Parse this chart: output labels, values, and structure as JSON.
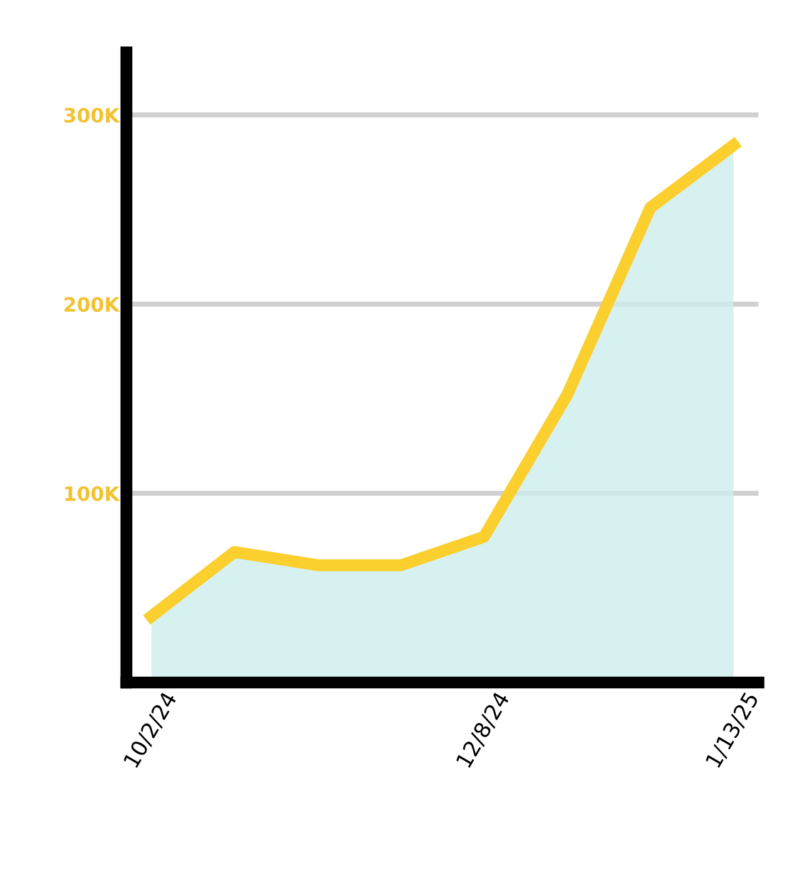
{
  "chart_data": {
    "type": "area",
    "categories": [
      "10/2/24",
      null,
      null,
      null,
      "12/8/24",
      null,
      null,
      "1/13/25"
    ],
    "series": [
      {
        "color": "#fbcf2e",
        "values": [
          35000,
          69000,
          62000,
          62000,
          77000,
          152000,
          251000,
          284000
        ]
      }
    ],
    "ylim": [
      0,
      333000
    ],
    "yticks": [
      {
        "value": 100000,
        "label": "100K"
      },
      {
        "value": 200000,
        "label": "200K"
      },
      {
        "value": 300000,
        "label": "300K"
      }
    ],
    "grid": "y",
    "legend": false
  }
}
